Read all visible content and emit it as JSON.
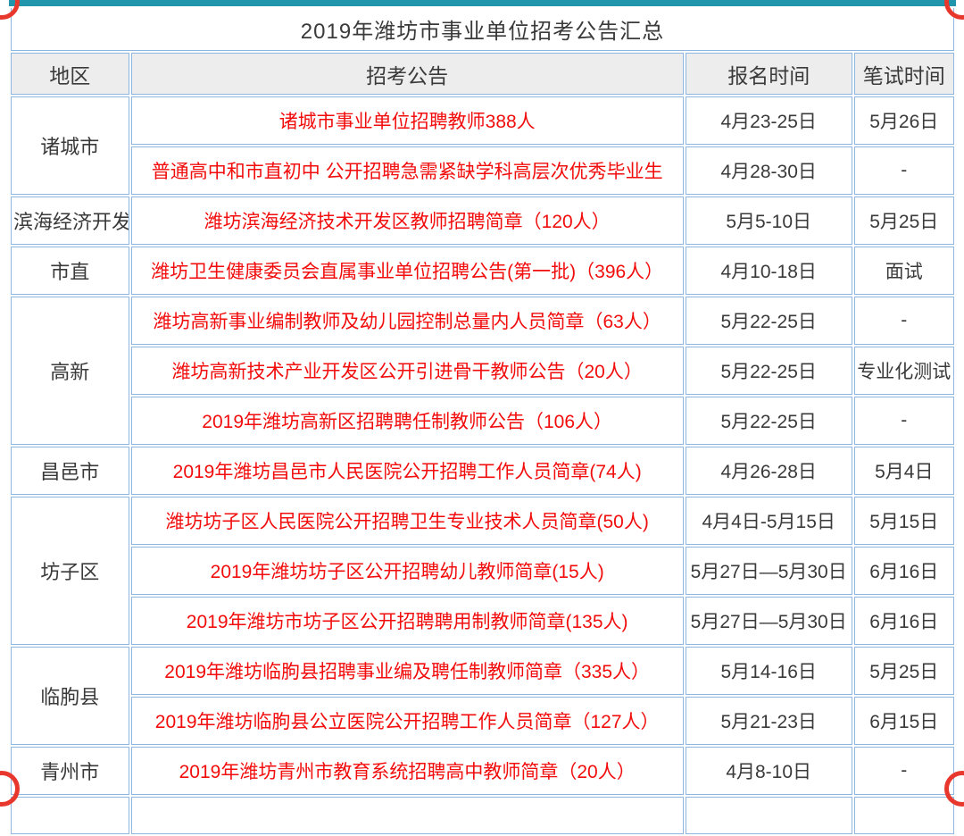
{
  "page": {
    "accent_bar_color": "#2095ab",
    "table_border_color": "#8fb5e1",
    "header_background": "#ededed",
    "announcement_text_color": "#f20d0d",
    "body_text_color": "#3a3a3a",
    "corner_frame_color": "#e8372c"
  },
  "table": {
    "title": "2019年潍坊市事业单位招考公告汇总",
    "columns": [
      "地区",
      "招考公告",
      "报名时间",
      "笔试时间"
    ],
    "rows": [
      {
        "region": "诸城市",
        "rowspan": 2,
        "announcement": "诸城市事业单位招聘教师388人",
        "signup": "4月23-25日",
        "exam": "5月26日"
      },
      {
        "announcement": "普通高中和市直初中 公开招聘急需紧缺学科高层次优秀毕业生",
        "signup": "4月28-30日",
        "exam": "-"
      },
      {
        "region": "滨海经济开发",
        "rowspan": 1,
        "announcement": "潍坊滨海经济技术开发区教师招聘简章（120人）",
        "signup": "5月5-10日",
        "exam": "5月25日"
      },
      {
        "region": "市直",
        "rowspan": 1,
        "announcement": "潍坊卫生健康委员会直属事业单位招聘公告(第一批)（396人）",
        "signup": "4月10-18日",
        "exam": "面试"
      },
      {
        "region": "高新",
        "rowspan": 3,
        "announcement": "潍坊高新事业编制教师及幼儿园控制总量内人员简章（63人）",
        "signup": "5月22-25日",
        "exam": "-"
      },
      {
        "announcement": "潍坊高新技术产业开发区公开引进骨干教师公告（20人）",
        "signup": "5月22-25日",
        "exam": "专业化测试"
      },
      {
        "announcement": "2019年潍坊高新区招聘聘任制教师公告（106人）",
        "signup": "5月22-25日",
        "exam": "-"
      },
      {
        "region": "昌邑市",
        "rowspan": 1,
        "announcement": "2019年潍坊昌邑市人民医院公开招聘工作人员简章(74人)",
        "signup": "4月26-28日",
        "exam": "5月4日"
      },
      {
        "region": "坊子区",
        "rowspan": 3,
        "announcement": "潍坊坊子区人民医院公开招聘卫生专业技术人员简章(50人)",
        "signup": "4月4日-5月15日",
        "exam": "5月15日"
      },
      {
        "announcement": "2019年潍坊坊子区公开招聘幼儿教师简章(15人)",
        "signup": "5月27日—5月30日",
        "exam": "6月16日"
      },
      {
        "announcement": "2019年潍坊市坊子区公开招聘聘用制教师简章(135人)",
        "signup": "5月27日—5月30日",
        "exam": "6月16日"
      },
      {
        "region": "临朐县",
        "rowspan": 2,
        "announcement": "2019年潍坊临朐县招聘事业编及聘任制教师简章（335人）",
        "signup": "5月14-16日",
        "exam": "5月25日"
      },
      {
        "announcement": "2019年潍坊临朐县公立医院公开招聘工作人员简章（127人）",
        "signup": "5月21-23日",
        "exam": "6月15日"
      },
      {
        "region": "青州市",
        "rowspan": 1,
        "announcement": "2019年潍坊青州市教育系统招聘高中教师简章（20人）",
        "signup": "4月8-10日",
        "exam": "-"
      }
    ]
  }
}
